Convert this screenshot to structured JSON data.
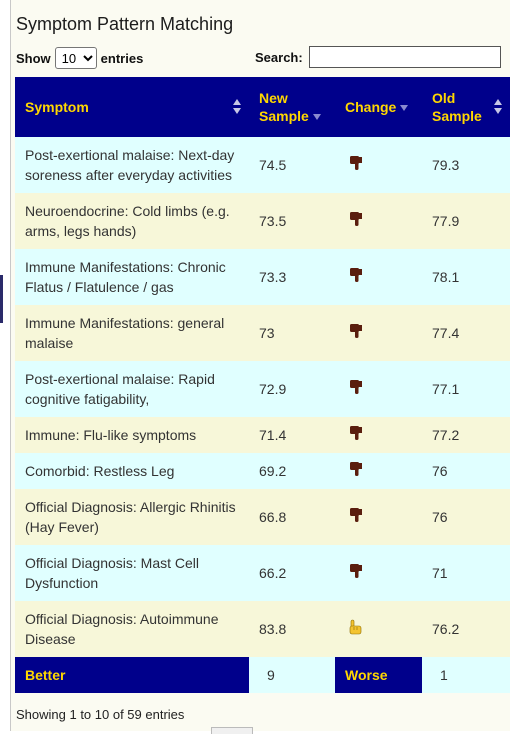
{
  "title": "Symptom Pattern Matching",
  "length_menu": {
    "show_label": "Show",
    "entries_label": "entries",
    "selected": "10"
  },
  "search": {
    "label": "Search:",
    "value": ""
  },
  "columns": [
    "Symptom",
    "New Sample",
    "Change",
    "Old Sample"
  ],
  "rows": [
    {
      "symptom": "Post-exertional malaise: Next-day soreness after everyday activities",
      "new": "74.5",
      "change": "down",
      "old": "79.3"
    },
    {
      "symptom": "Neuroendocrine: Cold limbs (e.g. arms, legs hands)",
      "new": "73.5",
      "change": "down",
      "old": "77.9"
    },
    {
      "symptom": "Immune Manifestations: Chronic Flatus / Flatulence / gas",
      "new": "73.3",
      "change": "down",
      "old": "78.1"
    },
    {
      "symptom": "Immune Manifestations: general malaise",
      "new": "73",
      "change": "down",
      "old": "77.4"
    },
    {
      "symptom": "Post-exertional malaise: Rapid cognitive fatigability,",
      "new": "72.9",
      "change": "down",
      "old": "77.1"
    },
    {
      "symptom": "Immune: Flu-like symptoms",
      "new": "71.4",
      "change": "down",
      "old": "77.2"
    },
    {
      "symptom": "Comorbid: Restless Leg",
      "new": "69.2",
      "change": "down",
      "old": "76"
    },
    {
      "symptom": "Official Diagnosis: Allergic Rhinitis (Hay Fever)",
      "new": "66.8",
      "change": "down",
      "old": "76"
    },
    {
      "symptom": "Official Diagnosis: Mast Cell Dysfunction",
      "new": "66.2",
      "change": "down",
      "old": "71"
    },
    {
      "symptom": "Official Diagnosis: Autoimmune Disease",
      "new": "83.8",
      "change": "up",
      "old": "76.2"
    }
  ],
  "footer": {
    "better_label": "Better",
    "better_count": "9",
    "worse_label": "Worse",
    "worse_count": "1"
  },
  "info_text": "Showing 1 to 10 of 59 entries",
  "colors": {
    "header_bg": "#00008b",
    "header_text": "#ffd700",
    "row_odd": "#e0ffff",
    "row_even": "#f7f7d9",
    "thumb_down": "#5a1e0e",
    "thumb_up": "#f4c430"
  }
}
